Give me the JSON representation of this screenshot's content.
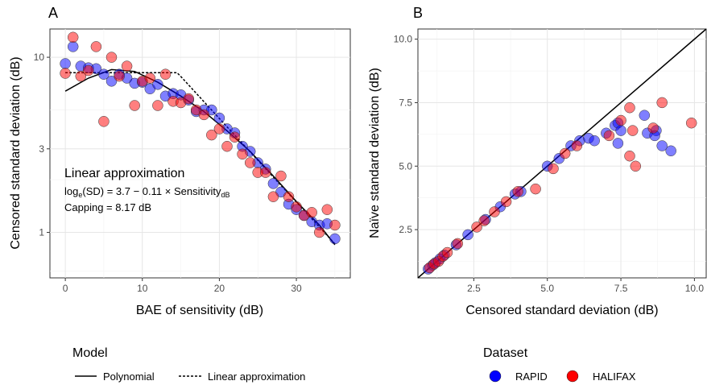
{
  "chart_data": [
    {
      "panel": "A",
      "type": "scatter",
      "xlabel": "BAE of sensitivity (dB)",
      "ylabel": "Censored standard deviation (dB)",
      "xlim": [
        -2,
        37
      ],
      "ylim": [
        0.55,
        14.5
      ],
      "yscale": "log",
      "xticks": [
        "0",
        "10",
        "20",
        "30"
      ],
      "xtick_values": [
        0,
        10,
        20,
        30
      ],
      "yticks": [
        "1",
        "3",
        "10"
      ],
      "ytick_values": [
        1,
        3,
        10
      ],
      "grid": true,
      "annotation": {
        "title": "Linear approximation",
        "equation_parts": [
          "log",
          "e",
          "(SD) = 3.7 − 0.11 × Sensitivity",
          "dB"
        ],
        "capping": "Capping = 8.17 dB"
      },
      "series": [
        {
          "name": "RAPID",
          "color": "#0000ff",
          "points": [
            [
              0,
              9.2
            ],
            [
              1,
              11.5
            ],
            [
              2,
              8.9
            ],
            [
              3,
              8.7
            ],
            [
              4,
              8.6
            ],
            [
              5,
              8.0
            ],
            [
              6,
              7.3
            ],
            [
              7,
              8.0
            ],
            [
              8,
              7.6
            ],
            [
              9,
              7.1
            ],
            [
              10,
              7.2
            ],
            [
              11,
              6.6
            ],
            [
              12,
              7.0
            ],
            [
              13,
              6.0
            ],
            [
              14,
              6.2
            ],
            [
              15,
              6.1
            ],
            [
              16,
              5.7
            ],
            [
              17,
              4.9
            ],
            [
              18,
              5.0
            ],
            [
              19,
              5.0
            ],
            [
              20,
              4.5
            ],
            [
              21,
              3.9
            ],
            [
              22,
              3.7
            ],
            [
              23,
              3.1
            ],
            [
              24,
              2.9
            ],
            [
              25,
              2.5
            ],
            [
              26,
              2.3
            ],
            [
              27,
              1.9
            ],
            [
              28,
              1.7
            ],
            [
              29,
              1.45
            ],
            [
              30,
              1.35
            ],
            [
              31,
              1.25
            ],
            [
              32,
              1.15
            ],
            [
              33,
              1.1
            ],
            [
              34,
              1.12
            ],
            [
              35,
              0.92
            ]
          ]
        },
        {
          "name": "HALIFAX",
          "color": "#ff0000",
          "points": [
            [
              0,
              8.1
            ],
            [
              1,
              13.0
            ],
            [
              2,
              7.8
            ],
            [
              3,
              8.4
            ],
            [
              4,
              11.5
            ],
            [
              5,
              4.3
            ],
            [
              6,
              10.0
            ],
            [
              7,
              7.8
            ],
            [
              8,
              8.9
            ],
            [
              9,
              5.3
            ],
            [
              10,
              7.3
            ],
            [
              11,
              7.6
            ],
            [
              12,
              5.3
            ],
            [
              13,
              8.0
            ],
            [
              14,
              5.6
            ],
            [
              15,
              5.5
            ],
            [
              16,
              5.8
            ],
            [
              17,
              5.0
            ],
            [
              18,
              4.7
            ],
            [
              19,
              3.6
            ],
            [
              20,
              3.9
            ],
            [
              21,
              3.1
            ],
            [
              22,
              3.5
            ],
            [
              23,
              2.8
            ],
            [
              24,
              2.5
            ],
            [
              25,
              2.2
            ],
            [
              26,
              2.2
            ],
            [
              27,
              1.6
            ],
            [
              28,
              2.1
            ],
            [
              29,
              1.6
            ],
            [
              30,
              1.4
            ],
            [
              31,
              1.25
            ],
            [
              32,
              1.3
            ],
            [
              33,
              1.0
            ],
            [
              34,
              1.35
            ],
            [
              35,
              1.1
            ]
          ]
        }
      ],
      "lines": [
        {
          "name": "Polynomial",
          "style": "solid",
          "points": [
            [
              0,
              6.4
            ],
            [
              3,
              7.6
            ],
            [
              6,
              8.5
            ],
            [
              9,
              8.3
            ],
            [
              12,
              7.2
            ],
            [
              15,
              6.0
            ],
            [
              18,
              4.9
            ],
            [
              21,
              3.8
            ],
            [
              24,
              2.9
            ],
            [
              27,
              2.1
            ],
            [
              30,
              1.5
            ],
            [
              33,
              1.1
            ],
            [
              35,
              0.85
            ]
          ]
        },
        {
          "name": "Linear approximation",
          "style": "dashed",
          "points": [
            [
              0,
              8.17
            ],
            [
              14.5,
              8.17
            ],
            [
              15,
              7.76
            ],
            [
              20,
              4.47
            ],
            [
              25,
              2.58
            ],
            [
              30,
              1.49
            ],
            [
              35,
              0.86
            ]
          ]
        }
      ]
    },
    {
      "panel": "B",
      "type": "scatter",
      "xlabel": "Censored standard deviation (dB)",
      "ylabel": "Naïve standard deviation (dB)",
      "xlim": [
        0.6,
        10.4
      ],
      "ylim": [
        0.6,
        10.4
      ],
      "xticks": [
        "2.5",
        "5.0",
        "7.5",
        "10.0"
      ],
      "xtick_values": [
        2.5,
        5.0,
        7.5,
        10.0
      ],
      "yticks": [
        "2.5",
        "5.0",
        "7.5",
        "10.0"
      ],
      "ytick_values": [
        2.5,
        5.0,
        7.5,
        10.0
      ],
      "grid": true,
      "identity_line": [
        [
          0.6,
          0.6
        ],
        [
          10.4,
          10.4
        ]
      ],
      "series": [
        {
          "name": "RAPID",
          "color": "#0000ff",
          "points": [
            [
              0.95,
              0.95
            ],
            [
              1.1,
              1.1
            ],
            [
              1.2,
              1.2
            ],
            [
              1.35,
              1.35
            ],
            [
              1.5,
              1.5
            ],
            [
              1.9,
              1.9
            ],
            [
              2.3,
              2.3
            ],
            [
              2.9,
              2.9
            ],
            [
              3.4,
              3.4
            ],
            [
              3.9,
              3.9
            ],
            [
              4.1,
              4.0
            ],
            [
              5.0,
              5.0
            ],
            [
              5.4,
              5.3
            ],
            [
              5.8,
              5.8
            ],
            [
              6.1,
              6.0
            ],
            [
              6.4,
              6.1
            ],
            [
              6.6,
              6.0
            ],
            [
              7.0,
              6.3
            ],
            [
              7.3,
              6.6
            ],
            [
              7.4,
              6.7
            ],
            [
              7.5,
              6.4
            ],
            [
              7.4,
              5.9
            ],
            [
              8.3,
              7.0
            ],
            [
              8.4,
              6.3
            ],
            [
              8.7,
              6.4
            ],
            [
              8.65,
              6.2
            ],
            [
              8.9,
              5.8
            ],
            [
              9.2,
              5.6
            ]
          ]
        },
        {
          "name": "HALIFAX",
          "color": "#ff0000",
          "points": [
            [
              1.0,
              1.0
            ],
            [
              1.15,
              1.15
            ],
            [
              1.3,
              1.25
            ],
            [
              1.45,
              1.45
            ],
            [
              1.6,
              1.6
            ],
            [
              1.95,
              1.95
            ],
            [
              2.6,
              2.6
            ],
            [
              2.85,
              2.85
            ],
            [
              3.2,
              3.2
            ],
            [
              3.6,
              3.6
            ],
            [
              4.0,
              4.0
            ],
            [
              4.6,
              4.1
            ],
            [
              5.2,
              4.9
            ],
            [
              5.6,
              5.5
            ],
            [
              6.0,
              5.8
            ],
            [
              7.1,
              6.2
            ],
            [
              7.5,
              6.8
            ],
            [
              7.8,
              7.3
            ],
            [
              7.8,
              5.4
            ],
            [
              7.9,
              6.4
            ],
            [
              8.0,
              5.0
            ],
            [
              8.6,
              6.5
            ],
            [
              8.9,
              7.5
            ],
            [
              9.9,
              6.7
            ]
          ]
        }
      ]
    }
  ],
  "legend_model": {
    "title": "Model",
    "items": [
      {
        "label": "Polynomial",
        "style": "solid"
      },
      {
        "label": "Linear approximation",
        "style": "dashed"
      }
    ]
  },
  "legend_dataset": {
    "title": "Dataset",
    "items": [
      {
        "label": "RAPID",
        "color": "#0000ff"
      },
      {
        "label": "HALIFAX",
        "color": "#ff0000"
      }
    ]
  }
}
